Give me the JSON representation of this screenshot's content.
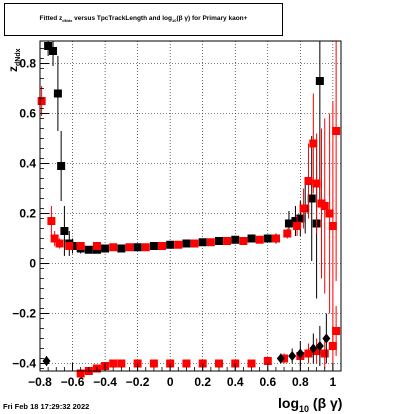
{
  "title": {
    "text_pre": "Fitted  z",
    "text_sub": "dNdx",
    "text_mid": "  versus TpcTrackLength and log",
    "text_sub2": "10",
    "text_post": "(β γ) for Primary kaon+"
  },
  "timestamp": "Fri Feb 18 17:29:32 2022",
  "chart_data": {
    "type": "scatter",
    "title": "Fitted z_dNdx versus TpcTrackLength and log10(β γ) for Primary kaon+",
    "xlabel": "log10(β γ)",
    "ylabel": "z_dNdx",
    "xlim": [
      -0.8,
      1.05
    ],
    "ylim": [
      -0.43,
      0.89
    ],
    "grid": true,
    "x_ticks": [
      -0.8,
      -0.6,
      -0.4,
      -0.2,
      0,
      0.2,
      0.4,
      0.6,
      0.8,
      1
    ],
    "x_tick_labels": [
      "−0.8",
      "−0.6",
      "−0.4",
      "−0.2",
      "0",
      "0.2",
      "0.4",
      "0.6",
      "0.8",
      "1"
    ],
    "y_ticks": [
      -0.4,
      -0.2,
      0,
      0.2,
      0.4,
      0.6,
      0.8
    ],
    "y_tick_labels": [
      "−0.4",
      "−0.2",
      "0",
      "0.2",
      "0.4",
      "0.6",
      "0.8"
    ],
    "series": [
      {
        "color": "#000000",
        "marker": "square",
        "points": [
          [
            -0.75,
            0.87,
            0.04
          ],
          [
            -0.72,
            0.85,
            0.06
          ],
          [
            -0.69,
            0.68,
            0.15
          ],
          [
            -0.67,
            0.39,
            0.14
          ],
          [
            -0.65,
            0.13,
            0.1
          ],
          [
            -0.62,
            0.08,
            0.05
          ],
          [
            -0.6,
            0.07,
            0.03
          ],
          [
            -0.55,
            0.06,
            0.02
          ],
          [
            -0.5,
            0.055,
            0.01
          ],
          [
            -0.45,
            0.055,
            0.01
          ],
          [
            -0.4,
            0.06,
            0.01
          ],
          [
            -0.3,
            0.06,
            0.01
          ],
          [
            -0.2,
            0.065,
            0.01
          ],
          [
            -0.1,
            0.07,
            0.01
          ],
          [
            0,
            0.075,
            0.01
          ],
          [
            0.1,
            0.08,
            0.01
          ],
          [
            0.2,
            0.085,
            0.01
          ],
          [
            0.3,
            0.09,
            0.01
          ],
          [
            0.4,
            0.095,
            0.01
          ],
          [
            0.5,
            0.1,
            0.01
          ],
          [
            0.6,
            0.1,
            0.01
          ],
          [
            0.65,
            0.1,
            0.02
          ],
          [
            0.73,
            0.16,
            0.05
          ],
          [
            0.77,
            0.17,
            0.06
          ],
          [
            0.8,
            0.18,
            0.07
          ],
          [
            0.83,
            0.22,
            0.1
          ],
          [
            0.87,
            0.26,
            0.25
          ],
          [
            0.9,
            0.16,
            0.3
          ],
          [
            0.92,
            0.73,
            0.5
          ]
        ]
      },
      {
        "color": "#ff0000",
        "marker": "square",
        "points": [
          [
            -0.79,
            0.65,
            0.06
          ],
          [
            -0.73,
            0.17,
            0.06
          ],
          [
            -0.71,
            0.1,
            0.03
          ],
          [
            -0.68,
            0.08,
            0.02
          ],
          [
            -0.62,
            0.07,
            0.01
          ],
          [
            -0.55,
            0.07,
            0.01
          ],
          [
            -0.45,
            0.07,
            0.01
          ],
          [
            -0.35,
            0.065,
            0.01
          ],
          [
            -0.25,
            0.065,
            0.01
          ],
          [
            -0.15,
            0.065,
            0.01
          ],
          [
            -0.05,
            0.07,
            0.01
          ],
          [
            0.05,
            0.075,
            0.01
          ],
          [
            0.15,
            0.08,
            0.01
          ],
          [
            0.25,
            0.085,
            0.01
          ],
          [
            0.35,
            0.09,
            0.01
          ],
          [
            0.45,
            0.09,
            0.01
          ],
          [
            0.55,
            0.095,
            0.01
          ],
          [
            0.65,
            0.1,
            0.01
          ],
          [
            0.72,
            0.12,
            0.02
          ],
          [
            0.78,
            0.15,
            0.04
          ],
          [
            0.82,
            0.22,
            0.08
          ],
          [
            0.85,
            0.33,
            0.15
          ],
          [
            0.88,
            0.48,
            0.2
          ],
          [
            0.9,
            0.32,
            0.2
          ],
          [
            0.93,
            0.24,
            0.3
          ],
          [
            0.95,
            0.23,
            0.35
          ],
          [
            0.98,
            0.2,
            0.4
          ],
          [
            1.0,
            0.15,
            0.5
          ],
          [
            1.02,
            0.53,
            0.6
          ],
          [
            -0.55,
            -0.44,
            0.01
          ],
          [
            -0.5,
            -0.43,
            0.01
          ],
          [
            -0.45,
            -0.42,
            0.01
          ],
          [
            -0.4,
            -0.41,
            0.01
          ],
          [
            -0.35,
            -0.4,
            0.01
          ],
          [
            -0.3,
            -0.4,
            0.01
          ],
          [
            -0.2,
            -0.4,
            0.01
          ],
          [
            -0.1,
            -0.4,
            0.01
          ],
          [
            0,
            -0.4,
            0.01
          ],
          [
            0.1,
            -0.4,
            0.01
          ],
          [
            0.2,
            -0.4,
            0.01
          ],
          [
            0.3,
            -0.4,
            0.01
          ],
          [
            0.4,
            -0.4,
            0.01
          ],
          [
            0.5,
            -0.4,
            0.01
          ],
          [
            0.6,
            -0.39,
            0.01
          ],
          [
            0.7,
            -0.38,
            0.02
          ],
          [
            0.8,
            -0.37,
            0.03
          ],
          [
            0.85,
            -0.36,
            0.04
          ],
          [
            0.9,
            -0.35,
            0.05
          ],
          [
            0.95,
            -0.36,
            0.06
          ],
          [
            1.0,
            -0.33,
            0.08
          ],
          [
            1.02,
            -0.27,
            0.1
          ]
        ]
      },
      {
        "color": "#000000",
        "marker": "diamond",
        "points": [
          [
            -0.76,
            -0.39,
            0.02
          ],
          [
            0.68,
            -0.38,
            0.02
          ],
          [
            0.75,
            -0.37,
            0.03
          ],
          [
            0.8,
            -0.36,
            0.05
          ],
          [
            0.88,
            -0.34,
            0.06
          ],
          [
            0.92,
            -0.33,
            0.08
          ],
          [
            0.96,
            -0.3,
            0.1
          ]
        ]
      }
    ]
  }
}
